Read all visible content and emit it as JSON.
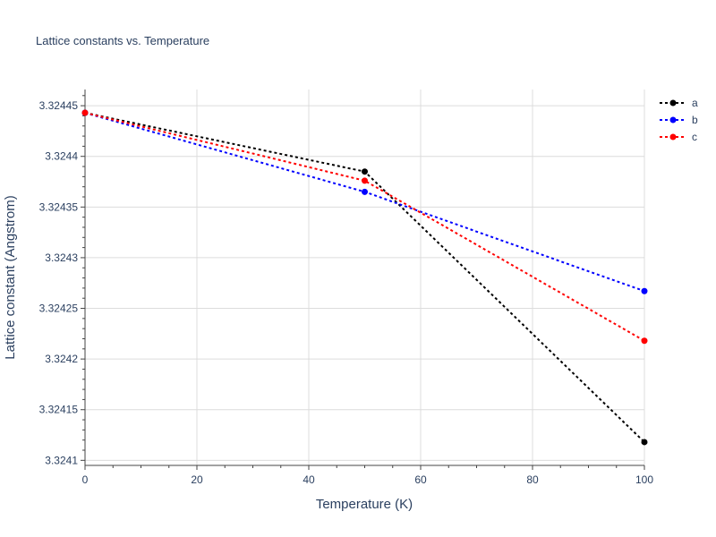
{
  "chart_data": {
    "type": "line",
    "title": "Lattice constants vs. Temperature",
    "xlabel": "Temperature (K)",
    "ylabel": "Lattice constant (Angstrom)",
    "xlim": [
      0,
      100
    ],
    "ylim": [
      3.324095,
      3.324466
    ],
    "x_ticks": [
      0,
      20,
      40,
      60,
      80,
      100
    ],
    "x_tick_labels": [
      "0",
      "20",
      "40",
      "60",
      "80",
      "100"
    ],
    "y_ticks": [
      3.3241,
      3.32415,
      3.3242,
      3.32425,
      3.3243,
      3.32435,
      3.3244,
      3.32445
    ],
    "y_tick_labels": [
      "3.3241",
      "3.32415",
      "3.3242",
      "3.32425",
      "3.3243",
      "3.32435",
      "3.3244",
      "3.32445"
    ],
    "grid": true,
    "legend_position": "top-right",
    "series": [
      {
        "name": "a",
        "color": "#000000",
        "x": [
          0,
          50,
          100
        ],
        "y": [
          3.324443,
          3.324385,
          3.324118
        ]
      },
      {
        "name": "b",
        "color": "#0000ff",
        "x": [
          0,
          50,
          100
        ],
        "y": [
          3.324443,
          3.324365,
          3.324267
        ]
      },
      {
        "name": "c",
        "color": "#ff0000",
        "x": [
          0,
          50,
          100
        ],
        "y": [
          3.324443,
          3.324376,
          3.324218
        ]
      }
    ]
  }
}
